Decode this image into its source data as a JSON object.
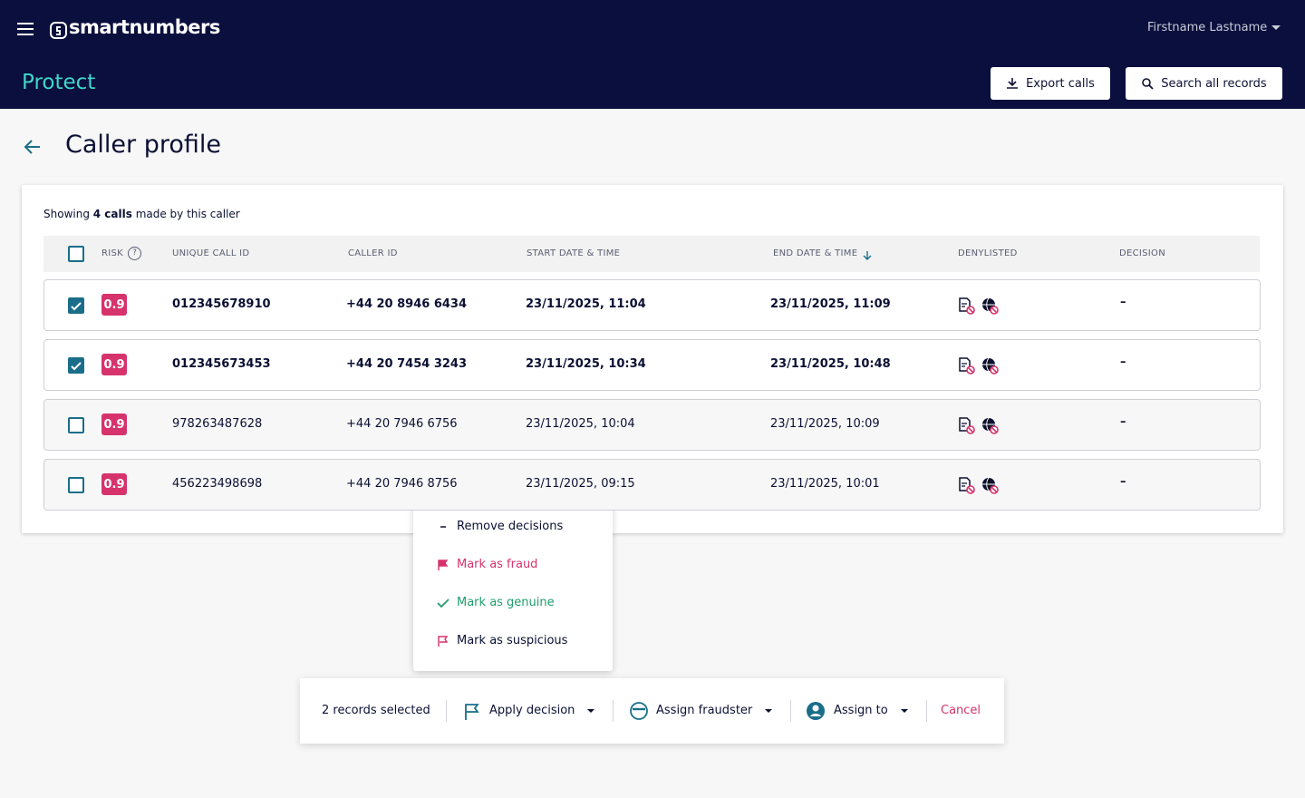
{
  "header": {
    "brand": "smartnumbers",
    "user": "Firstname Lastname",
    "product": "Protect",
    "buttons": [
      "Export calls",
      "Search all records"
    ]
  },
  "page": {
    "title": "Caller profile"
  },
  "summary": {
    "prefix": "Showing",
    "count": "4 calls",
    "suffix": "made by this caller"
  },
  "table": {
    "columns": [
      "RISK",
      "UNIQUE CALL ID",
      "CALLER ID",
      "START DATE & TIME",
      "END DATE & TIME",
      "DENYLISTED",
      "DECISION"
    ],
    "rows": [
      {
        "selected": true,
        "risk": "0.9",
        "call_id": "012345678910",
        "caller_id": "+44 20 8946 6434",
        "start": "23/11/2025, 11:04",
        "end": "23/11/2025, 11:09",
        "decision": "–"
      },
      {
        "selected": true,
        "risk": "0.9",
        "call_id": "012345673453",
        "caller_id": "+44 20 7454 3243",
        "start": "23/11/2025, 10:34",
        "end": "23/11/2025, 10:48",
        "decision": "–"
      },
      {
        "selected": false,
        "risk": "0.9",
        "call_id": "978263487628",
        "caller_id": "+44 20 7946 6756",
        "start": "23/11/2025, 10:04",
        "end": "23/11/2025, 10:09",
        "decision": "–"
      },
      {
        "selected": false,
        "risk": "0.9",
        "call_id": "456223498698",
        "caller_id": "+44 20 7946 8756",
        "start": "23/11/2025, 09:15",
        "end": "23/11/2025, 10:01",
        "decision": "–"
      }
    ]
  },
  "menu": {
    "items": [
      "Remove decisions",
      "Mark as fraud",
      "Mark as genuine",
      "Mark as suspicious"
    ]
  },
  "action_bar": {
    "selected_text": "2 records selected",
    "actions": [
      "Apply decision",
      "Assign fraudster",
      "Assign to"
    ],
    "cancel": "Cancel"
  }
}
